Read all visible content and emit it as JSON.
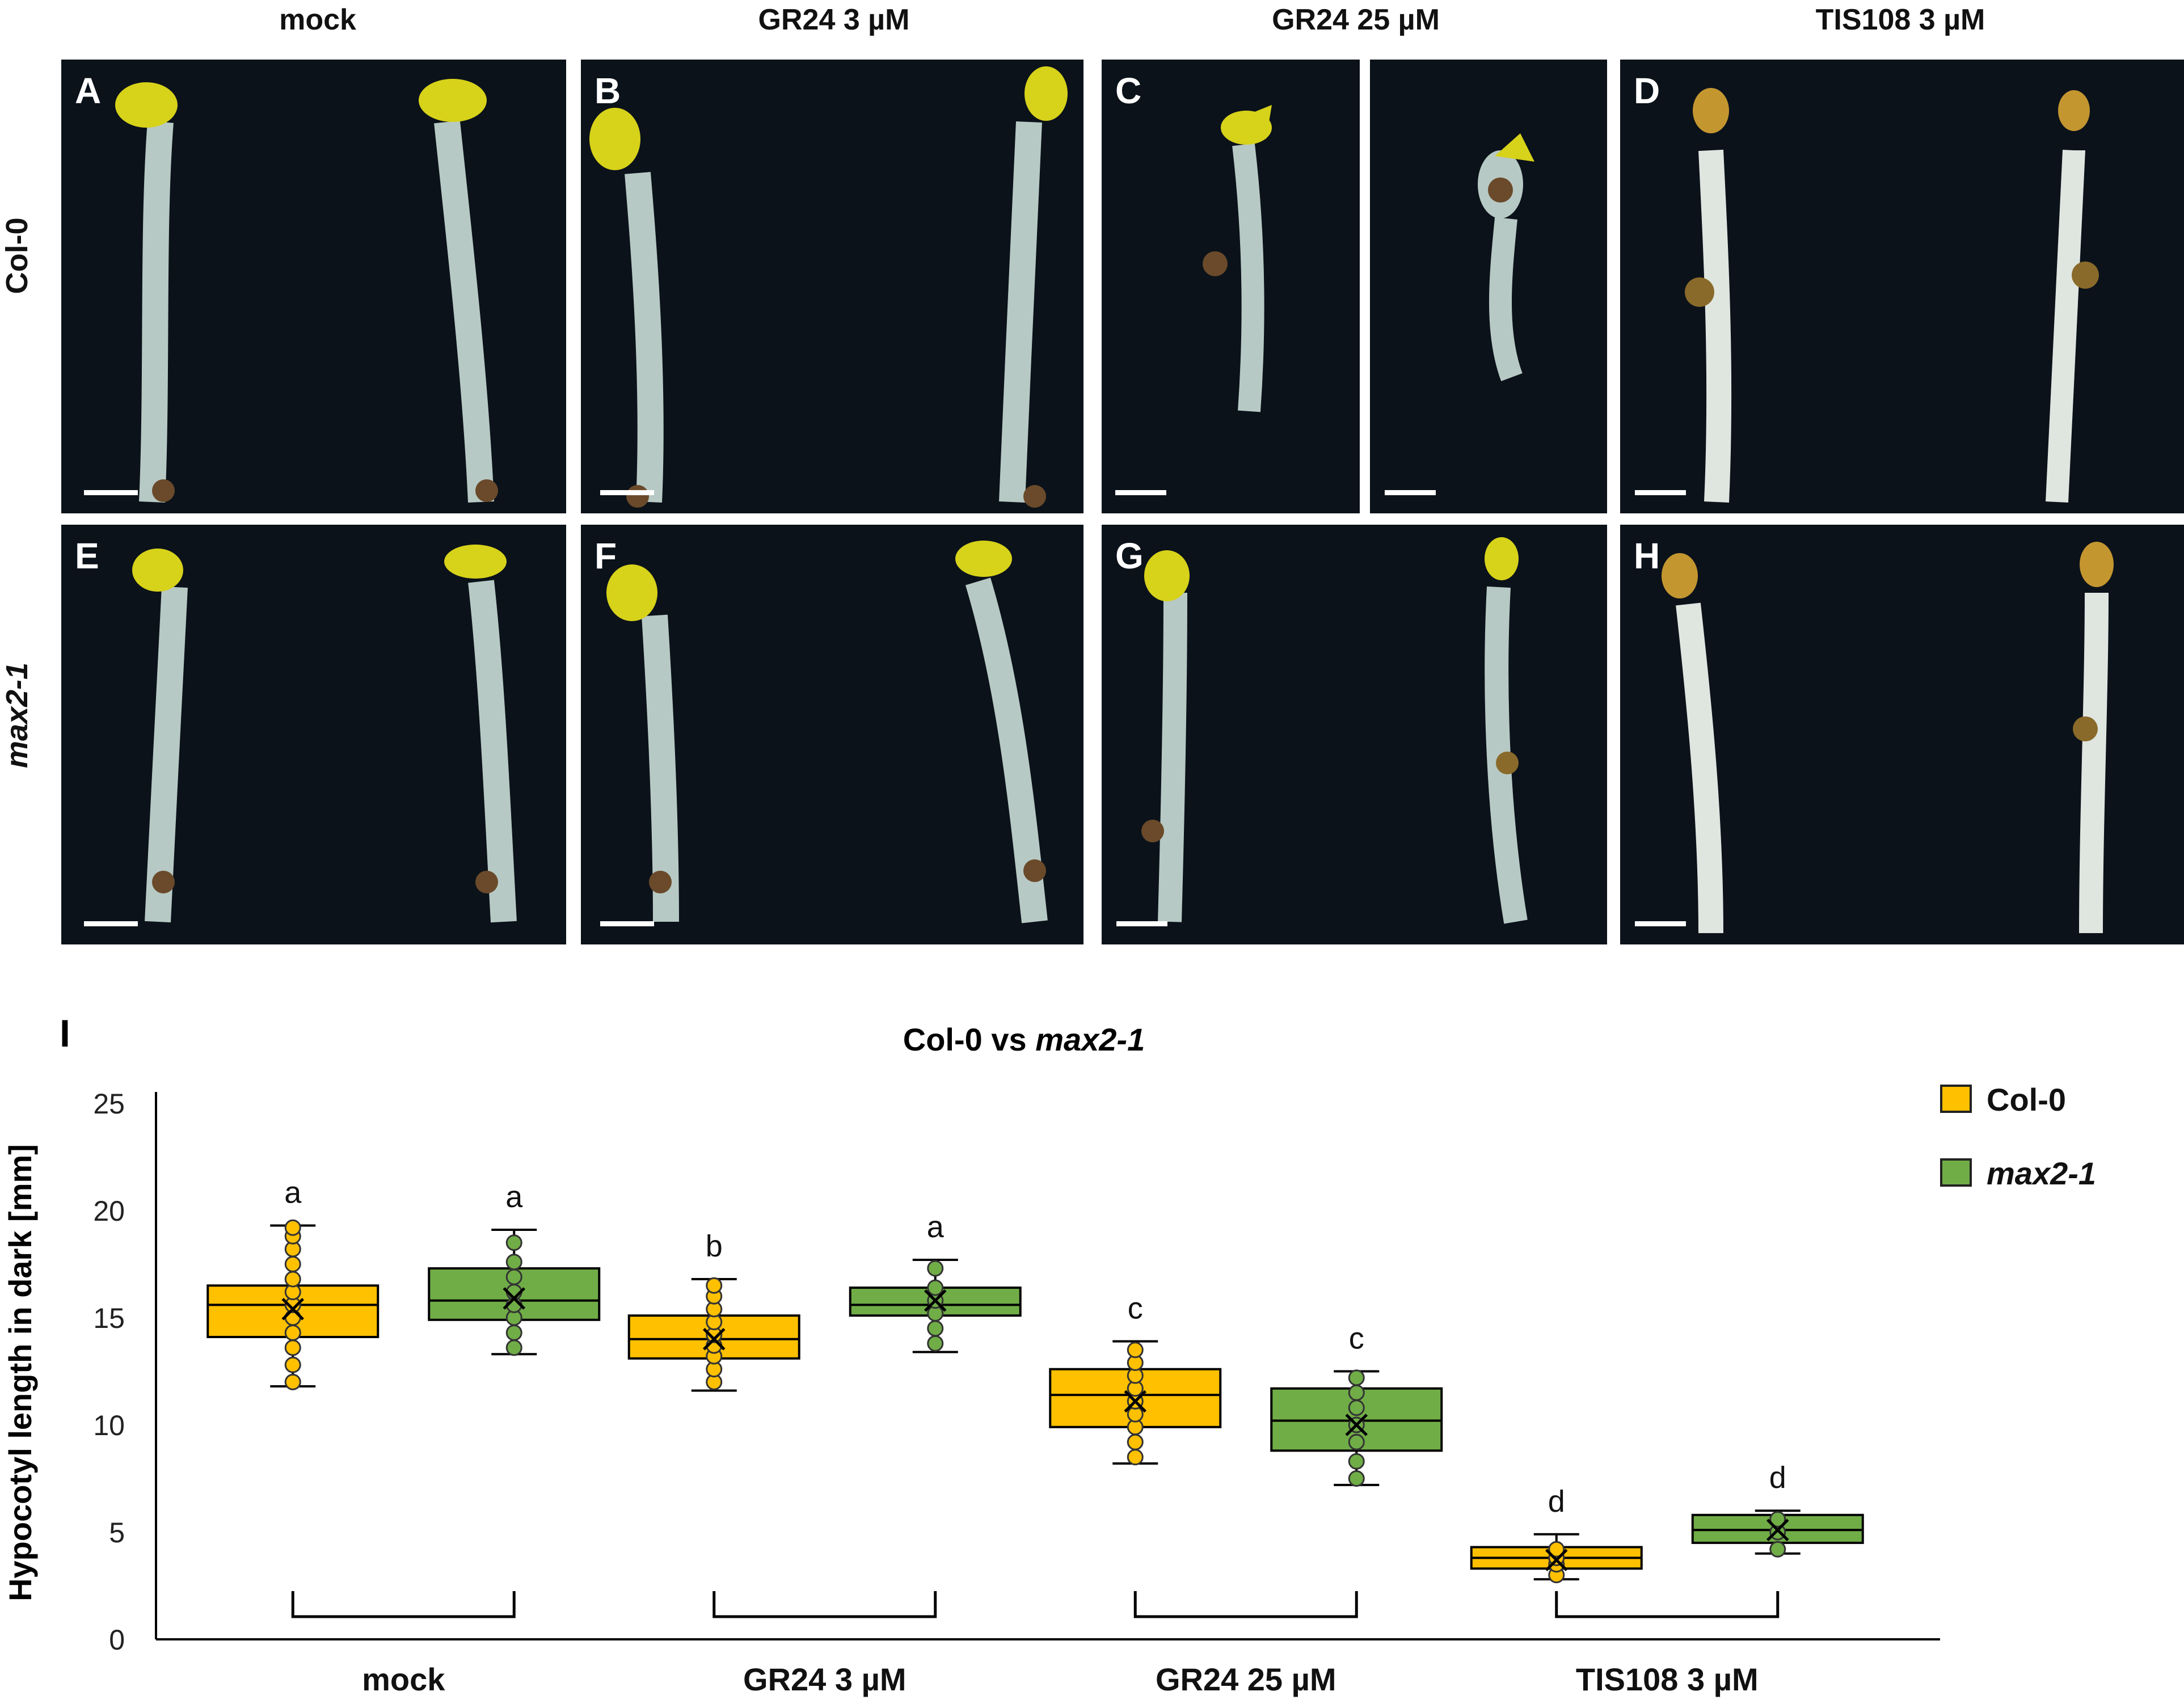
{
  "column_headers": [
    "mock",
    "GR24 3 µM",
    "GR24 25 µM",
    "TIS108 3 µM"
  ],
  "row_headers": [
    "Col-0",
    "max2-1"
  ],
  "panels": [
    {
      "letter": "A",
      "row": "Col-0",
      "treatment": "mock"
    },
    {
      "letter": "B",
      "row": "Col-0",
      "treatment": "GR24 3 µM"
    },
    {
      "letter": "C",
      "row": "Col-0",
      "treatment": "GR24 25 µM"
    },
    {
      "letter": "D",
      "row": "Col-0",
      "treatment": "TIS108 3 µM"
    },
    {
      "letter": "E",
      "row": "max2-1",
      "treatment": "mock"
    },
    {
      "letter": "F",
      "row": "max2-1",
      "treatment": "GR24 3 µM"
    },
    {
      "letter": "G",
      "row": "max2-1",
      "treatment": "GR24 25 µM"
    },
    {
      "letter": "H",
      "row": "max2-1",
      "treatment": "TIS108 3 µM"
    }
  ],
  "colors": {
    "panel_background": "#0b121a",
    "seedling": "#b7c9c4",
    "cotyledon": "#d7d21a",
    "col0": "#ffc000",
    "max2": "#70ad47",
    "chart_axis": "#000000"
  },
  "chart_data": {
    "type": "boxplot",
    "panel_letter": "I",
    "title_prefix": "Col-0 vs ",
    "title_italic": "max2-1",
    "xlabel": "",
    "ylabel": "Hypocotyl length in dark [mm]",
    "ylim": [
      0,
      25
    ],
    "yticks": [
      0,
      5,
      10,
      15,
      20,
      25
    ],
    "categories": [
      "mock",
      "GR24 3 µM",
      "GR24 25 µM",
      "TIS108 3 µM"
    ],
    "legend": {
      "position": "top-right",
      "entries": [
        "Col-0",
        "max2-1"
      ]
    },
    "series": [
      {
        "name": "Col-0",
        "color": "#ffc000",
        "boxes": [
          {
            "category": "mock",
            "min": 11.8,
            "q1": 14.1,
            "median": 15.6,
            "q3": 16.5,
            "max": 19.3,
            "mean": 15.4,
            "letter": "a",
            "points": [
              12.0,
              12.8,
              13.6,
              14.3,
              15.0,
              15.6,
              16.2,
              16.8,
              17.5,
              18.2,
              18.8,
              19.2
            ]
          },
          {
            "category": "GR24 3 µM",
            "min": 11.6,
            "q1": 13.1,
            "median": 14.0,
            "q3": 15.1,
            "max": 16.8,
            "mean": 14.0,
            "letter": "b",
            "points": [
              12.0,
              12.6,
              13.2,
              13.7,
              14.2,
              14.8,
              15.4,
              16.0,
              16.5
            ]
          },
          {
            "category": "GR24 25 µM",
            "min": 8.2,
            "q1": 9.9,
            "median": 11.4,
            "q3": 12.6,
            "max": 13.9,
            "mean": 11.1,
            "letter": "c",
            "points": [
              8.5,
              9.2,
              9.9,
              10.5,
              11.1,
              11.7,
              12.3,
              12.9,
              13.5
            ]
          },
          {
            "category": "TIS108 3 µM",
            "min": 2.8,
            "q1": 3.3,
            "median": 3.8,
            "q3": 4.3,
            "max": 4.9,
            "mean": 3.7,
            "letter": "d",
            "points": [
              3.0,
              3.5,
              3.8,
              4.2
            ]
          }
        ]
      },
      {
        "name": "max2-1",
        "color": "#70ad47",
        "boxes": [
          {
            "category": "mock",
            "min": 13.3,
            "q1": 14.9,
            "median": 15.8,
            "q3": 17.3,
            "max": 19.1,
            "mean": 15.9,
            "letter": "a",
            "points": [
              13.6,
              14.3,
              15.0,
              15.6,
              16.2,
              16.9,
              17.6,
              18.5
            ]
          },
          {
            "category": "GR24 3 µM",
            "min": 13.4,
            "q1": 15.1,
            "median": 15.6,
            "q3": 16.4,
            "max": 17.7,
            "mean": 15.8,
            "letter": "a",
            "points": [
              13.8,
              14.5,
              15.2,
              15.8,
              16.4,
              17.3
            ]
          },
          {
            "category": "GR24 25 µM",
            "min": 7.2,
            "q1": 8.8,
            "median": 10.2,
            "q3": 11.7,
            "max": 12.5,
            "mean": 10.0,
            "letter": "c",
            "points": [
              7.5,
              8.3,
              9.2,
              10.0,
              10.8,
              11.5,
              12.2
            ]
          },
          {
            "category": "TIS108 3 µM",
            "min": 4.0,
            "q1": 4.5,
            "median": 5.1,
            "q3": 5.8,
            "max": 6.0,
            "mean": 5.1,
            "letter": "d",
            "points": [
              4.2,
              5.0,
              5.6
            ]
          }
        ]
      }
    ]
  }
}
